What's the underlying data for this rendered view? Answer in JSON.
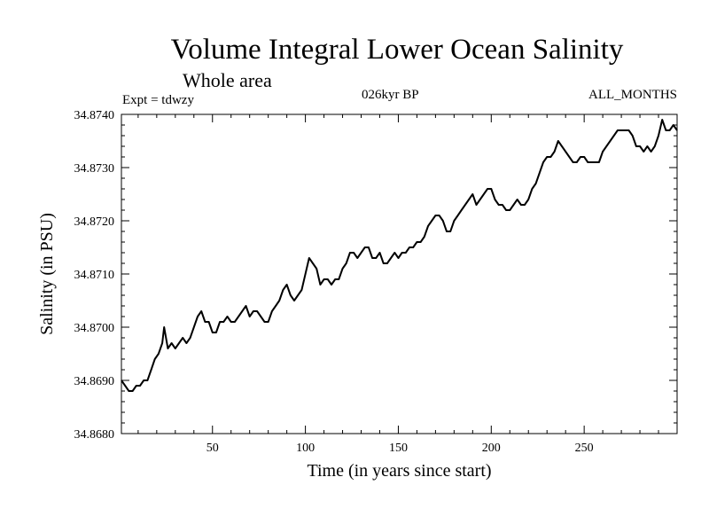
{
  "chart_data": {
    "type": "line",
    "title": "Volume Integral Lower Ocean Salinity",
    "subtitle": "Whole area",
    "experiment": "Expt = tdwzy",
    "period": "026kyr BP",
    "months": "ALL_MONTHS",
    "xlabel": "Time (in years since start)",
    "ylabel": "Salinity (in PSU)",
    "xlim": [
      1,
      300
    ],
    "ylim": [
      34.868,
      34.874
    ],
    "x_ticks": [
      50,
      100,
      150,
      200,
      250
    ],
    "x_tick_labels": [
      "50",
      "100",
      "150",
      "200",
      "250"
    ],
    "y_ticks": [
      34.868,
      34.869,
      34.87,
      34.871,
      34.872,
      34.873,
      34.874
    ],
    "y_tick_labels": [
      "34.8680",
      "34.8690",
      "34.8700",
      "34.8710",
      "34.8720",
      "34.8730",
      "34.8740"
    ],
    "grid": false,
    "series": [
      {
        "color": "#000000",
        "x": [
          1,
          3,
          5,
          7,
          9,
          11,
          13,
          15,
          17,
          19,
          21,
          23,
          24,
          26,
          28,
          30,
          32,
          34,
          36,
          38,
          40,
          42,
          44,
          46,
          48,
          50,
          52,
          54,
          56,
          58,
          60,
          62,
          64,
          66,
          68,
          70,
          72,
          74,
          76,
          78,
          80,
          82,
          84,
          86,
          88,
          90,
          92,
          94,
          96,
          98,
          100,
          102,
          104,
          106,
          108,
          110,
          112,
          114,
          116,
          118,
          120,
          122,
          124,
          126,
          128,
          130,
          132,
          134,
          136,
          138,
          140,
          142,
          144,
          146,
          148,
          150,
          152,
          154,
          156,
          158,
          160,
          162,
          164,
          166,
          168,
          170,
          172,
          174,
          176,
          178,
          180,
          182,
          184,
          186,
          188,
          190,
          192,
          194,
          196,
          198,
          200,
          202,
          204,
          206,
          208,
          210,
          212,
          214,
          216,
          218,
          220,
          222,
          224,
          226,
          228,
          230,
          232,
          234,
          236,
          238,
          240,
          242,
          244,
          246,
          248,
          250,
          252,
          254,
          256,
          258,
          260,
          262,
          264,
          266,
          268,
          270,
          272,
          274,
          276,
          278,
          280,
          282,
          284,
          286,
          288,
          290,
          292,
          294,
          296,
          298,
          300
        ],
        "values": [
          34.869,
          34.8689,
          34.8688,
          34.8688,
          34.8689,
          34.8689,
          34.869,
          34.869,
          34.8692,
          34.8694,
          34.8695,
          34.8697,
          34.87,
          34.8696,
          34.8697,
          34.8696,
          34.8697,
          34.8698,
          34.8697,
          34.8698,
          34.87,
          34.8702,
          34.8703,
          34.8701,
          34.8701,
          34.8699,
          34.8699,
          34.8701,
          34.8701,
          34.8702,
          34.8701,
          34.8701,
          34.8702,
          34.8703,
          34.8704,
          34.8702,
          34.8703,
          34.8703,
          34.8702,
          34.8701,
          34.8701,
          34.8703,
          34.8704,
          34.8705,
          34.8707,
          34.8708,
          34.8706,
          34.8705,
          34.8706,
          34.8707,
          34.871,
          34.8713,
          34.8712,
          34.8711,
          34.8708,
          34.8709,
          34.8709,
          34.8708,
          34.8709,
          34.8709,
          34.8711,
          34.8712,
          34.8714,
          34.8714,
          34.8713,
          34.8714,
          34.8715,
          34.8715,
          34.8713,
          34.8713,
          34.8714,
          34.8712,
          34.8712,
          34.8713,
          34.8714,
          34.8713,
          34.8714,
          34.8714,
          34.8715,
          34.8715,
          34.8716,
          34.8716,
          34.8717,
          34.8719,
          34.872,
          34.8721,
          34.8721,
          34.872,
          34.8718,
          34.8718,
          34.872,
          34.8721,
          34.8722,
          34.8723,
          34.8724,
          34.8725,
          34.8723,
          34.8724,
          34.8725,
          34.8726,
          34.8726,
          34.8724,
          34.8723,
          34.8723,
          34.8722,
          34.8722,
          34.8723,
          34.8724,
          34.8723,
          34.8723,
          34.8724,
          34.8726,
          34.8727,
          34.8729,
          34.8731,
          34.8732,
          34.8732,
          34.8733,
          34.8735,
          34.8734,
          34.8733,
          34.8732,
          34.8731,
          34.8731,
          34.8732,
          34.8732,
          34.8731,
          34.8731,
          34.8731,
          34.8731,
          34.8733,
          34.8734,
          34.8735,
          34.8736,
          34.8737,
          34.8737,
          34.8737,
          34.8737,
          34.8736,
          34.8734,
          34.8734,
          34.8733,
          34.8734,
          34.8733,
          34.8734,
          34.8736,
          34.8739,
          34.8737,
          34.8737,
          34.8738,
          34.8737
        ]
      }
    ]
  }
}
